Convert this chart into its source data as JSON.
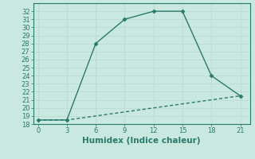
{
  "xlabel": "Humidex (Indice chaleur)",
  "background_color": "#c8e8e0",
  "line_color": "#2a7a6a",
  "grid_color": "#b8d8d0",
  "line1_x": [
    0,
    3,
    6,
    9,
    12,
    15,
    18,
    21
  ],
  "line1_y": [
    18.5,
    18.5,
    28,
    31,
    32,
    32,
    24,
    21.5
  ],
  "line2_x": [
    0,
    3,
    6,
    9,
    12,
    15,
    18,
    21
  ],
  "line2_y": [
    18.5,
    18.5,
    19.0,
    19.5,
    20.0,
    20.5,
    21.0,
    21.5
  ],
  "xlim": [
    -0.5,
    22
  ],
  "ylim": [
    18,
    33
  ],
  "xticks": [
    0,
    3,
    6,
    9,
    12,
    15,
    18,
    21
  ],
  "yticks": [
    18,
    19,
    20,
    21,
    22,
    23,
    24,
    25,
    26,
    27,
    28,
    29,
    30,
    31,
    32
  ],
  "marker": "D",
  "marker_size": 2.5,
  "linewidth": 1.0,
  "xlabel_fontsize": 7.5,
  "tick_fontsize": 6
}
